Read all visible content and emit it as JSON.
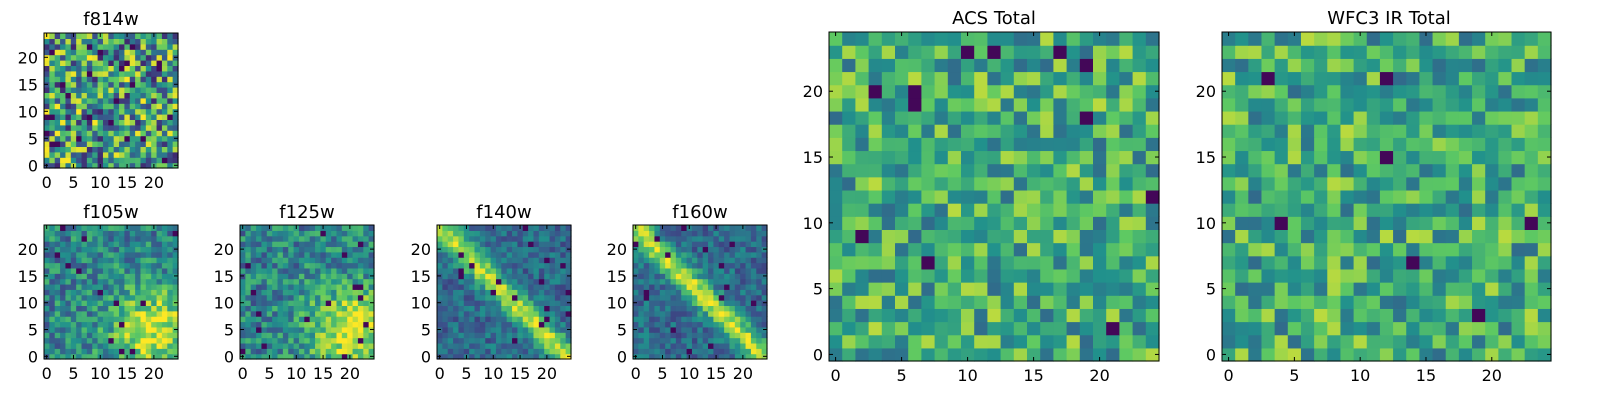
{
  "chart_data": [
    {
      "id": "f814w",
      "type": "heatmap",
      "title": "f814w",
      "grid_size": 25,
      "seed": 814,
      "pattern": "noise",
      "xticks": [
        "0",
        "5",
        "10",
        "15",
        "20"
      ],
      "yticks": [
        "0",
        "5",
        "10",
        "15",
        "20"
      ],
      "xlim": [
        -0.5,
        24.5
      ],
      "ylim": [
        -0.5,
        24.5
      ]
    },
    {
      "id": "f105w",
      "type": "heatmap",
      "title": "f105w",
      "grid_size": 25,
      "seed": 105,
      "pattern": "blob_lower_right",
      "xticks": [
        "0",
        "5",
        "10",
        "15",
        "20"
      ],
      "yticks": [
        "0",
        "5",
        "10",
        "15",
        "20"
      ],
      "xlim": [
        -0.5,
        24.5
      ],
      "ylim": [
        -0.5,
        24.5
      ]
    },
    {
      "id": "f125w",
      "type": "heatmap",
      "title": "f125w",
      "grid_size": 25,
      "seed": 125,
      "pattern": "blob_lower_right",
      "xticks": [
        "0",
        "5",
        "10",
        "15",
        "20"
      ],
      "yticks": [
        "0",
        "5",
        "10",
        "15",
        "20"
      ],
      "xlim": [
        -0.5,
        24.5
      ],
      "ylim": [
        -0.5,
        24.5
      ]
    },
    {
      "id": "f140w",
      "type": "heatmap",
      "title": "f140w",
      "grid_size": 25,
      "seed": 140,
      "pattern": "diagonal_band",
      "xticks": [
        "0",
        "5",
        "10",
        "15",
        "20"
      ],
      "yticks": [
        "0",
        "5",
        "10",
        "15",
        "20"
      ],
      "xlim": [
        -0.5,
        24.5
      ],
      "ylim": [
        -0.5,
        24.5
      ]
    },
    {
      "id": "f160w",
      "type": "heatmap",
      "title": "f160w",
      "grid_size": 25,
      "seed": 160,
      "pattern": "diagonal_band",
      "xticks": [
        "0",
        "5",
        "10",
        "15",
        "20"
      ],
      "yticks": [
        "0",
        "5",
        "10",
        "15",
        "20"
      ],
      "xlim": [
        -0.5,
        24.5
      ],
      "ylim": [
        -0.5,
        24.5
      ]
    },
    {
      "id": "acs-total",
      "type": "heatmap",
      "title": "ACS Total",
      "grid_size": 25,
      "seed": 2001,
      "pattern": "flat",
      "xticks": [
        "0",
        "5",
        "10",
        "15",
        "20"
      ],
      "yticks": [
        "0",
        "5",
        "10",
        "15",
        "20"
      ],
      "xlim": [
        -0.5,
        24.5
      ],
      "ylim": [
        -0.5,
        24.5
      ]
    },
    {
      "id": "wfc3-ir-total",
      "type": "heatmap",
      "title": "WFC3 IR Total",
      "grid_size": 25,
      "seed": 3003,
      "pattern": "flat",
      "xticks": [
        "0",
        "5",
        "10",
        "15",
        "20"
      ],
      "yticks": [
        "0",
        "5",
        "10",
        "15",
        "20"
      ],
      "xlim": [
        -0.5,
        24.5
      ],
      "ylim": [
        -0.5,
        24.5
      ]
    }
  ],
  "colormap": [
    "#440154",
    "#3b528b",
    "#21918c",
    "#5ec962",
    "#fde725"
  ]
}
